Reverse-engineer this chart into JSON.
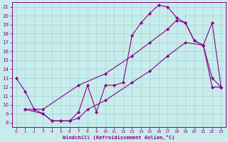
{
  "xlabel": "Windchill (Refroidissement éolien,°C)",
  "bg_color": "#c8ecec",
  "line_color": "#880088",
  "grid_color": "#a0d4d4",
  "xlim": [
    -0.5,
    23.5
  ],
  "ylim": [
    7.5,
    21.5
  ],
  "xticks": [
    0,
    1,
    2,
    3,
    4,
    5,
    6,
    7,
    8,
    9,
    10,
    11,
    12,
    13,
    14,
    15,
    16,
    17,
    18,
    19,
    20,
    21,
    22,
    23
  ],
  "yticks": [
    8,
    9,
    10,
    11,
    12,
    13,
    14,
    15,
    16,
    17,
    18,
    19,
    20,
    21
  ],
  "jagged_x": [
    0,
    1,
    2,
    3,
    4,
    5,
    6,
    7,
    8,
    9,
    10,
    11,
    12,
    13,
    14,
    15,
    16,
    17,
    18,
    19,
    20,
    21,
    22,
    23
  ],
  "jagged_y": [
    13.0,
    11.5,
    9.5,
    9.0,
    8.2,
    8.2,
    8.2,
    9.2,
    12.2,
    9.2,
    12.2,
    12.2,
    12.5,
    17.8,
    19.2,
    20.3,
    21.2,
    21.0,
    19.8,
    19.2,
    17.2,
    16.7,
    13.0,
    12.0
  ],
  "upper_diag_x": [
    1,
    2,
    3,
    7,
    10,
    13,
    15,
    17,
    18,
    19,
    20,
    21,
    22,
    23
  ],
  "upper_diag_y": [
    9.5,
    9.5,
    9.5,
    12.2,
    13.5,
    15.5,
    17.0,
    18.5,
    19.5,
    19.2,
    17.2,
    16.7,
    19.2,
    12.0
  ],
  "lower_diag_x": [
    1,
    3,
    4,
    5,
    6,
    7,
    8,
    10,
    13,
    15,
    17,
    19,
    21,
    22,
    23
  ],
  "lower_diag_y": [
    9.5,
    9.0,
    8.2,
    8.2,
    8.2,
    8.5,
    9.5,
    10.5,
    12.5,
    13.8,
    15.5,
    17.0,
    16.7,
    12.0,
    12.0
  ]
}
